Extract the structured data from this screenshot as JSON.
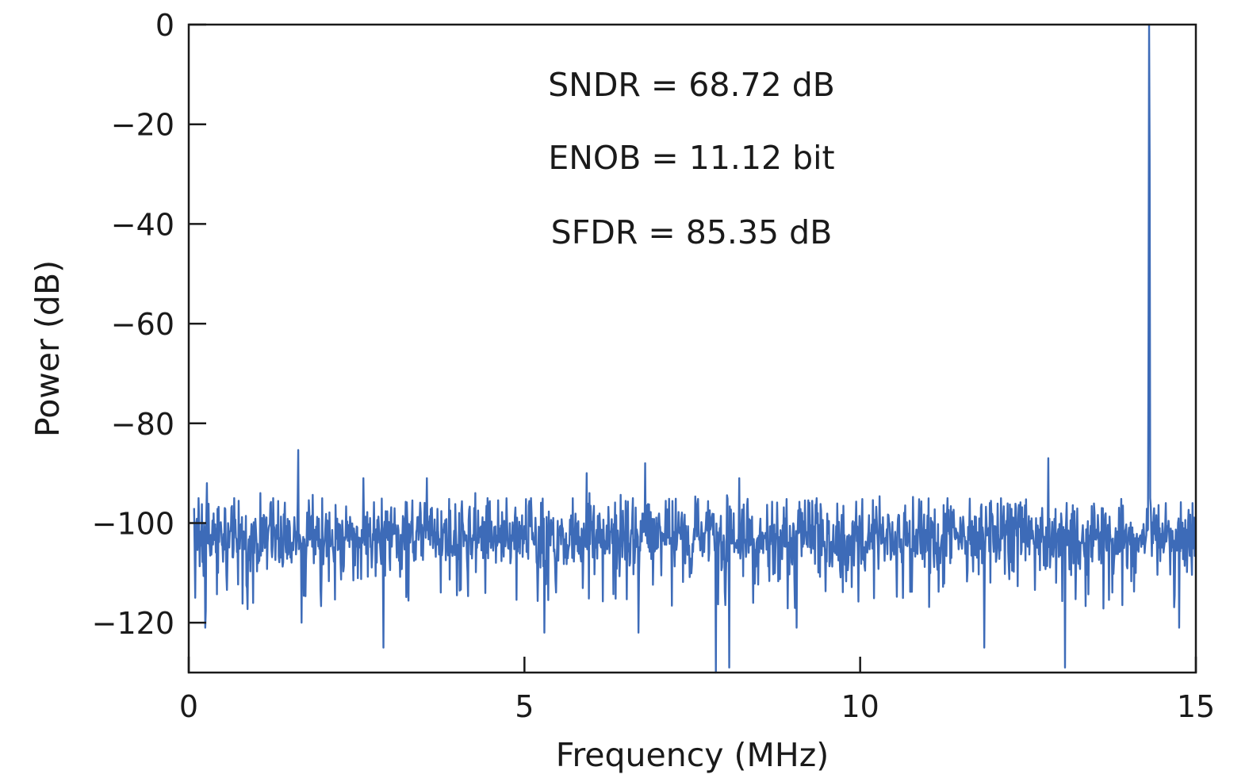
{
  "chart_data": {
    "type": "line",
    "title": "",
    "xlabel": "Frequency (MHz)",
    "ylabel": "Power (dB)",
    "xlim": [
      0,
      15
    ],
    "ylim": [
      -130,
      0
    ],
    "xticks": [
      0,
      5,
      10,
      15
    ],
    "xtick_labels": [
      "0",
      "5",
      "10",
      "15"
    ],
    "yticks": [
      0,
      -20,
      -40,
      -60,
      -80,
      -100,
      -120
    ],
    "ytick_labels": [
      "0",
      "−20",
      "−40",
      "−60",
      "−80",
      "−100",
      "−120"
    ],
    "grid": false,
    "legend": "none",
    "series_color": "#3d6bb8",
    "annotations": [
      "SNDR = 68.72 dB",
      "ENOB = 11.12 bit",
      "SFDR = 85.35 dB"
    ],
    "noise_floor_db": -103,
    "noise_band_db": [
      -110,
      -97
    ],
    "n_points": 1800,
    "fundamental": {
      "x": 14.3,
      "y": 0
    },
    "spurs": [
      {
        "x": 0.05,
        "y": -97
      },
      {
        "x": 0.15,
        "y": -95
      },
      {
        "x": 0.27,
        "y": -92
      },
      {
        "x": 0.68,
        "y": -95
      },
      {
        "x": 1.63,
        "y": -85.35
      },
      {
        "x": 2.6,
        "y": -91
      },
      {
        "x": 3.55,
        "y": -91
      },
      {
        "x": 4.45,
        "y": -95
      },
      {
        "x": 5.93,
        "y": -90
      },
      {
        "x": 6.8,
        "y": -88
      },
      {
        "x": 8.2,
        "y": -91
      },
      {
        "x": 9.35,
        "y": -95
      },
      {
        "x": 11.3,
        "y": -95
      },
      {
        "x": 12.8,
        "y": -87
      },
      {
        "x": 14.32,
        "y": -95
      },
      {
        "x": 14.55,
        "y": -96
      },
      {
        "x": 14.95,
        "y": -96
      }
    ],
    "dips": [
      {
        "x": 0.1,
        "y": -115
      },
      {
        "x": 0.25,
        "y": -121
      },
      {
        "x": 1.68,
        "y": -120
      },
      {
        "x": 2.9,
        "y": -125
      },
      {
        "x": 5.3,
        "y": -122
      },
      {
        "x": 6.7,
        "y": -122
      },
      {
        "x": 7.85,
        "y": -130
      },
      {
        "x": 8.05,
        "y": -129
      },
      {
        "x": 9.05,
        "y": -121
      },
      {
        "x": 11.85,
        "y": -125
      },
      {
        "x": 13.05,
        "y": -129
      },
      {
        "x": 14.75,
        "y": -121
      }
    ]
  }
}
